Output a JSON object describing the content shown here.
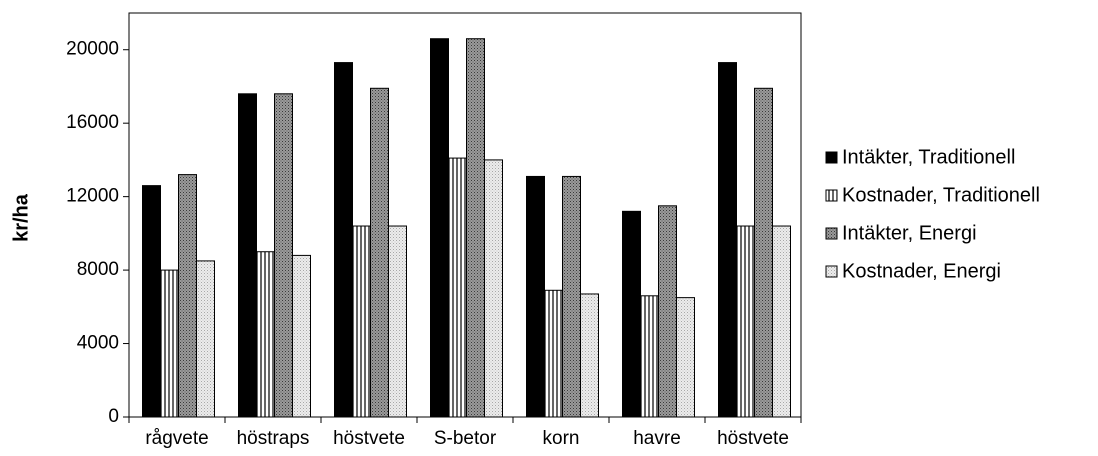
{
  "chart_data": {
    "type": "bar",
    "categories": [
      "rågvete",
      "höstraps",
      "höstvete",
      "S-betor",
      "korn",
      "havre",
      "höstvete"
    ],
    "series": [
      {
        "name": "Intäkter, Traditionell",
        "values": [
          12600,
          17600,
          19300,
          20600,
          13100,
          11200,
          19300
        ],
        "fill": "#000000",
        "pattern": "solid"
      },
      {
        "name": "Kostnader, Traditionell",
        "values": [
          8000,
          9000,
          10400,
          14100,
          6900,
          6600,
          10400
        ],
        "fill": "#ffffff",
        "pattern": "vertical-lines"
      },
      {
        "name": "Intäkter, Energi",
        "values": [
          13200,
          17600,
          17900,
          20600,
          13100,
          11500,
          17900
        ],
        "fill": "#8c8c8c",
        "pattern": "dots-dark"
      },
      {
        "name": "Kostnader, Energi",
        "values": [
          8500,
          8800,
          10400,
          14000,
          6700,
          6500,
          10400
        ],
        "fill": "#e0e0e0",
        "pattern": "dots-light"
      }
    ],
    "title": "",
    "xlabel": "",
    "ylabel": "kr/ha",
    "ylim": [
      0,
      22000
    ],
    "yticks": [
      0,
      4000,
      8000,
      12000,
      16000,
      20000
    ],
    "grid": false,
    "legend": "right"
  }
}
